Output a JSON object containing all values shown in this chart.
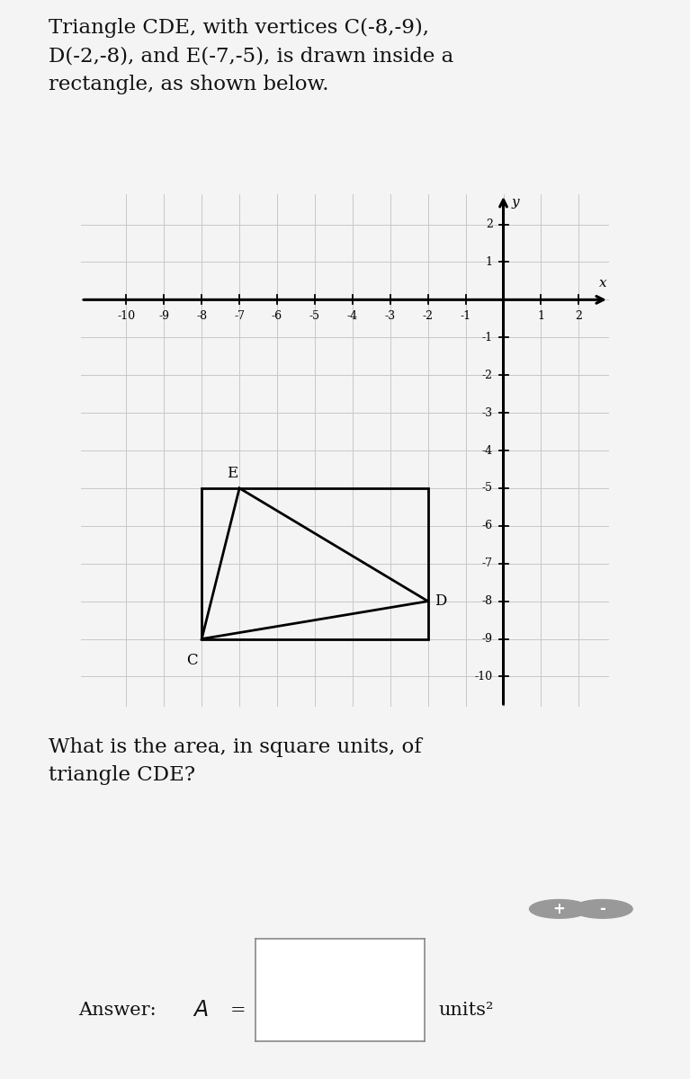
{
  "title_text": "Triangle CDE, with vertices C(-8,-9),\nD(-2,-8), and E(-7,-5), is drawn inside a\nrectangle, as shown below.",
  "question_text": "What is the area, in square units, of\ntriangle CDE?",
  "units_text": "units²",
  "C": [
    -8,
    -9
  ],
  "D": [
    -2,
    -8
  ],
  "E": [
    -7,
    -5
  ],
  "rect_corners": [
    [
      -8,
      -9
    ],
    [
      -2,
      -9
    ],
    [
      -2,
      -5
    ],
    [
      -8,
      -5
    ]
  ],
  "xlim": [
    -11.2,
    2.8
  ],
  "ylim": [
    -10.8,
    2.8
  ],
  "xticks": [
    -10,
    -9,
    -8,
    -7,
    -6,
    -5,
    -4,
    -3,
    -2,
    -1,
    1,
    2
  ],
  "yticks": [
    -10,
    -9,
    -8,
    -7,
    -6,
    -5,
    -4,
    -3,
    -2,
    -1,
    1,
    2
  ],
  "grid_color": "#c8c8c8",
  "triangle_color": "#000000",
  "rect_color": "#000000",
  "background_color": "#ffffff",
  "page_bg": "#f4f4f4",
  "title_fontsize": 16.5,
  "question_fontsize": 16.5,
  "tick_fontsize": 9,
  "vertex_fontsize": 12,
  "axis_label_fontsize": 11,
  "answer_fontsize": 15
}
